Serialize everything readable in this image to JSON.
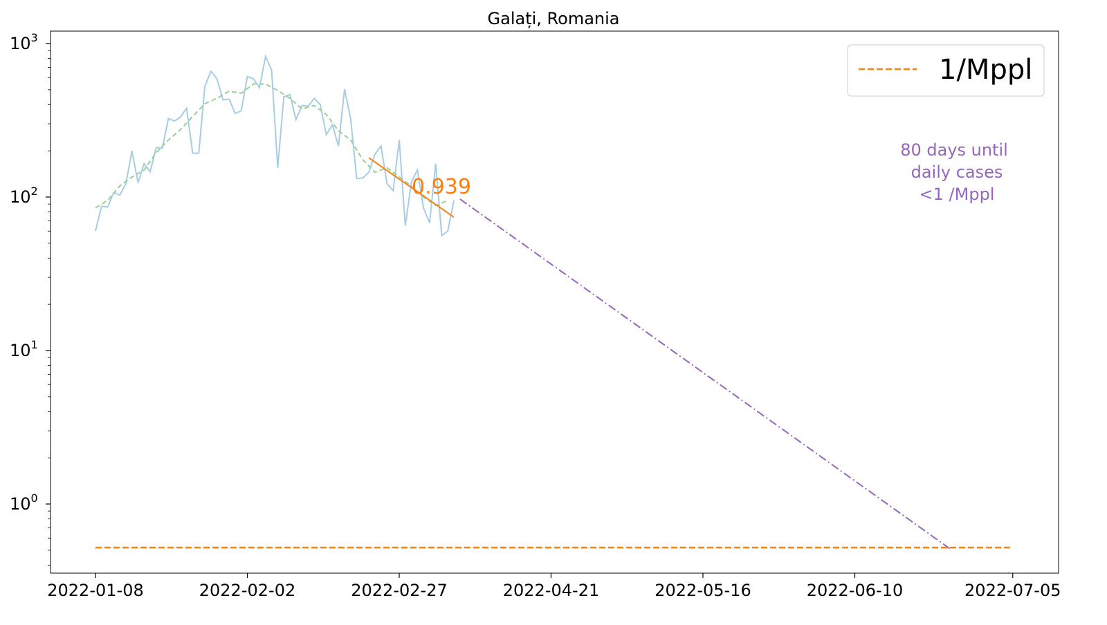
{
  "chart_data": {
    "type": "line",
    "title": "Galați, Romania",
    "xlabel": "",
    "ylabel": "",
    "y_scale": "log",
    "ylim": [
      0.35,
      1150
    ],
    "y_ticks": [
      {
        "value": 1,
        "base": "10",
        "exp": "0"
      },
      {
        "value": 10,
        "base": "10",
        "exp": "1"
      },
      {
        "value": 100,
        "base": "10",
        "exp": "2"
      },
      {
        "value": 1000,
        "base": "10",
        "exp": "3"
      }
    ],
    "x_tick_labels": [
      "2022-01-08",
      "2022-02-02",
      "2022-02-27",
      "2022-04-21",
      "2022-05-16",
      "2022-06-10",
      "2022-07-05"
    ],
    "grid": false,
    "legend": {
      "position": "top-right",
      "entries": [
        {
          "label": "1/Mppl",
          "color": "#ff7f0e",
          "style": "dashed"
        }
      ]
    },
    "series": [
      {
        "role": "daily",
        "color": "#a6cde3",
        "x": [
          0,
          1,
          2,
          3,
          4,
          5,
          6,
          7,
          8,
          9,
          10,
          11,
          12,
          13,
          14,
          15,
          16,
          17,
          18,
          19,
          20,
          21,
          22,
          23,
          24,
          25,
          26,
          27,
          28,
          29,
          30,
          31,
          32,
          33,
          34,
          35,
          36,
          37,
          38,
          39,
          40,
          41,
          42,
          43,
          44,
          45,
          46,
          47,
          48,
          49,
          50,
          51,
          52,
          53,
          54,
          55,
          56,
          57,
          58,
          59
        ],
        "values": [
          60,
          87,
          86,
          107,
          103,
          122,
          200,
          124,
          165,
          146,
          210,
          208,
          325,
          313,
          332,
          380,
          193,
          193,
          525,
          660,
          590,
          430,
          435,
          350,
          365,
          610,
          590,
          515,
          825,
          670,
          155,
          450,
          465,
          320,
          395,
          390,
          440,
          400,
          255,
          295,
          215,
          505,
          325,
          132,
          133,
          145,
          190,
          215,
          122,
          110,
          235,
          65,
          125,
          150,
          85,
          68,
          165,
          56,
          60,
          95
        ]
      },
      {
        "role": "moving-average",
        "color": "#98d098",
        "x": [
          0,
          2,
          4,
          6,
          8,
          10,
          12,
          14,
          16,
          18,
          20,
          22,
          24,
          26,
          28,
          30,
          32,
          34,
          36,
          38,
          40,
          42,
          44,
          46,
          48,
          50,
          52,
          54,
          56,
          58
        ],
        "values": [
          85,
          95,
          118,
          135,
          150,
          195,
          235,
          275,
          335,
          405,
          440,
          490,
          475,
          545,
          545,
          495,
          440,
          375,
          395,
          345,
          270,
          235,
          175,
          145,
          155,
          135,
          118,
          100,
          88,
          95
        ]
      }
    ],
    "trend_fit": {
      "label": "0.939",
      "color": "#ff7f0e",
      "x": [
        45,
        59
      ],
      "values": [
        180,
        74
      ]
    },
    "projection": {
      "color": "#9467bd",
      "x": [
        60,
        141
      ],
      "values": [
        97,
        0.5
      ]
    },
    "threshold": {
      "label": "1/Mppl",
      "color": "#ff7f0e",
      "value": 0.52,
      "x": [
        0,
        151
      ]
    },
    "annotation": {
      "lines": [
        "80 days until",
        "daily cases",
        "<1 /Mppl"
      ],
      "color": "#9467bd"
    }
  }
}
